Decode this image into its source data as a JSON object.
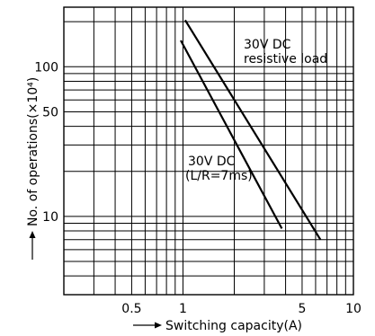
{
  "chart_data": {
    "type": "line",
    "xlabel": "Switching capacity(A)",
    "ylabel": "No. of operations(×10⁴)",
    "xscale": "log",
    "yscale": "log",
    "xlim": [
      0.2,
      10
    ],
    "ylim": [
      3,
      250
    ],
    "x_ticks": [
      {
        "value": 0.5,
        "label": "0.5"
      },
      {
        "value": 1,
        "label": "1"
      },
      {
        "value": 5,
        "label": "5"
      },
      {
        "value": 10,
        "label": "10"
      }
    ],
    "y_ticks": [
      {
        "value": 10,
        "label": "10"
      },
      {
        "value": 50,
        "label": "50"
      },
      {
        "value": 100,
        "label": "100"
      }
    ],
    "grid": true,
    "series": [
      {
        "name": "30V DC resistive load",
        "label_lines": [
          "30V DC",
          "resistive load"
        ],
        "x": [
          1.03,
          6.4
        ],
        "y": [
          205,
          7
        ]
      },
      {
        "name": "30V DC (L/R=7ms)",
        "label_lines": [
          "30V DC",
          "(L/R=7ms)"
        ],
        "x": [
          0.97,
          3.8
        ],
        "y": [
          150,
          8.3
        ]
      }
    ]
  }
}
